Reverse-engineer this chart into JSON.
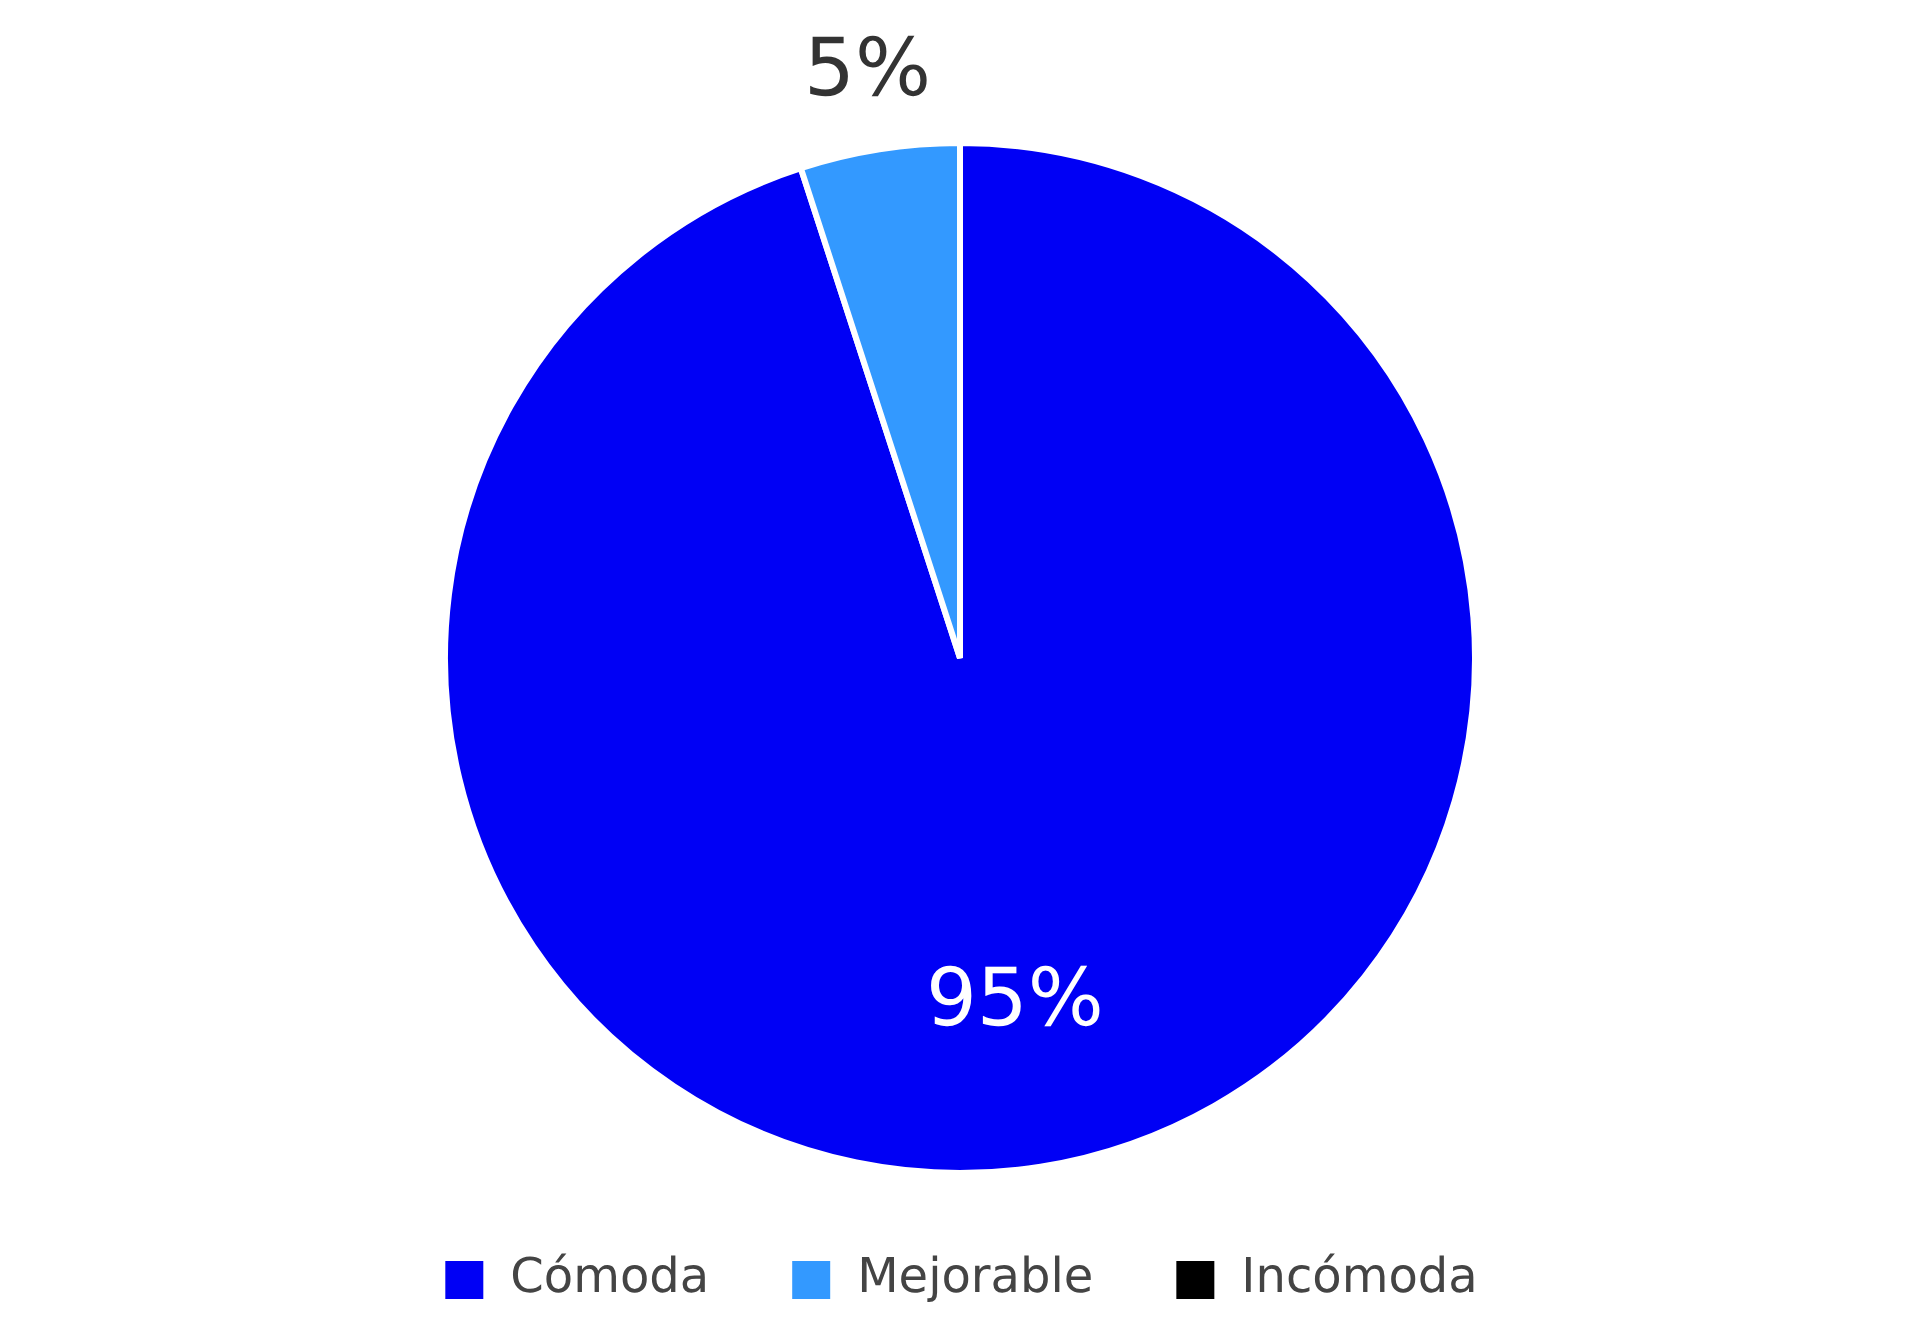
{
  "chart_data": {
    "type": "pie",
    "categories": [
      "Cómoda",
      "Mejorable",
      "Incómoda"
    ],
    "values": [
      95,
      5,
      0
    ],
    "colors": [
      "#0000f5",
      "#3399ff",
      "#000000"
    ],
    "value_labels": [
      "95%",
      "5%",
      null
    ],
    "legend": "bottom"
  }
}
